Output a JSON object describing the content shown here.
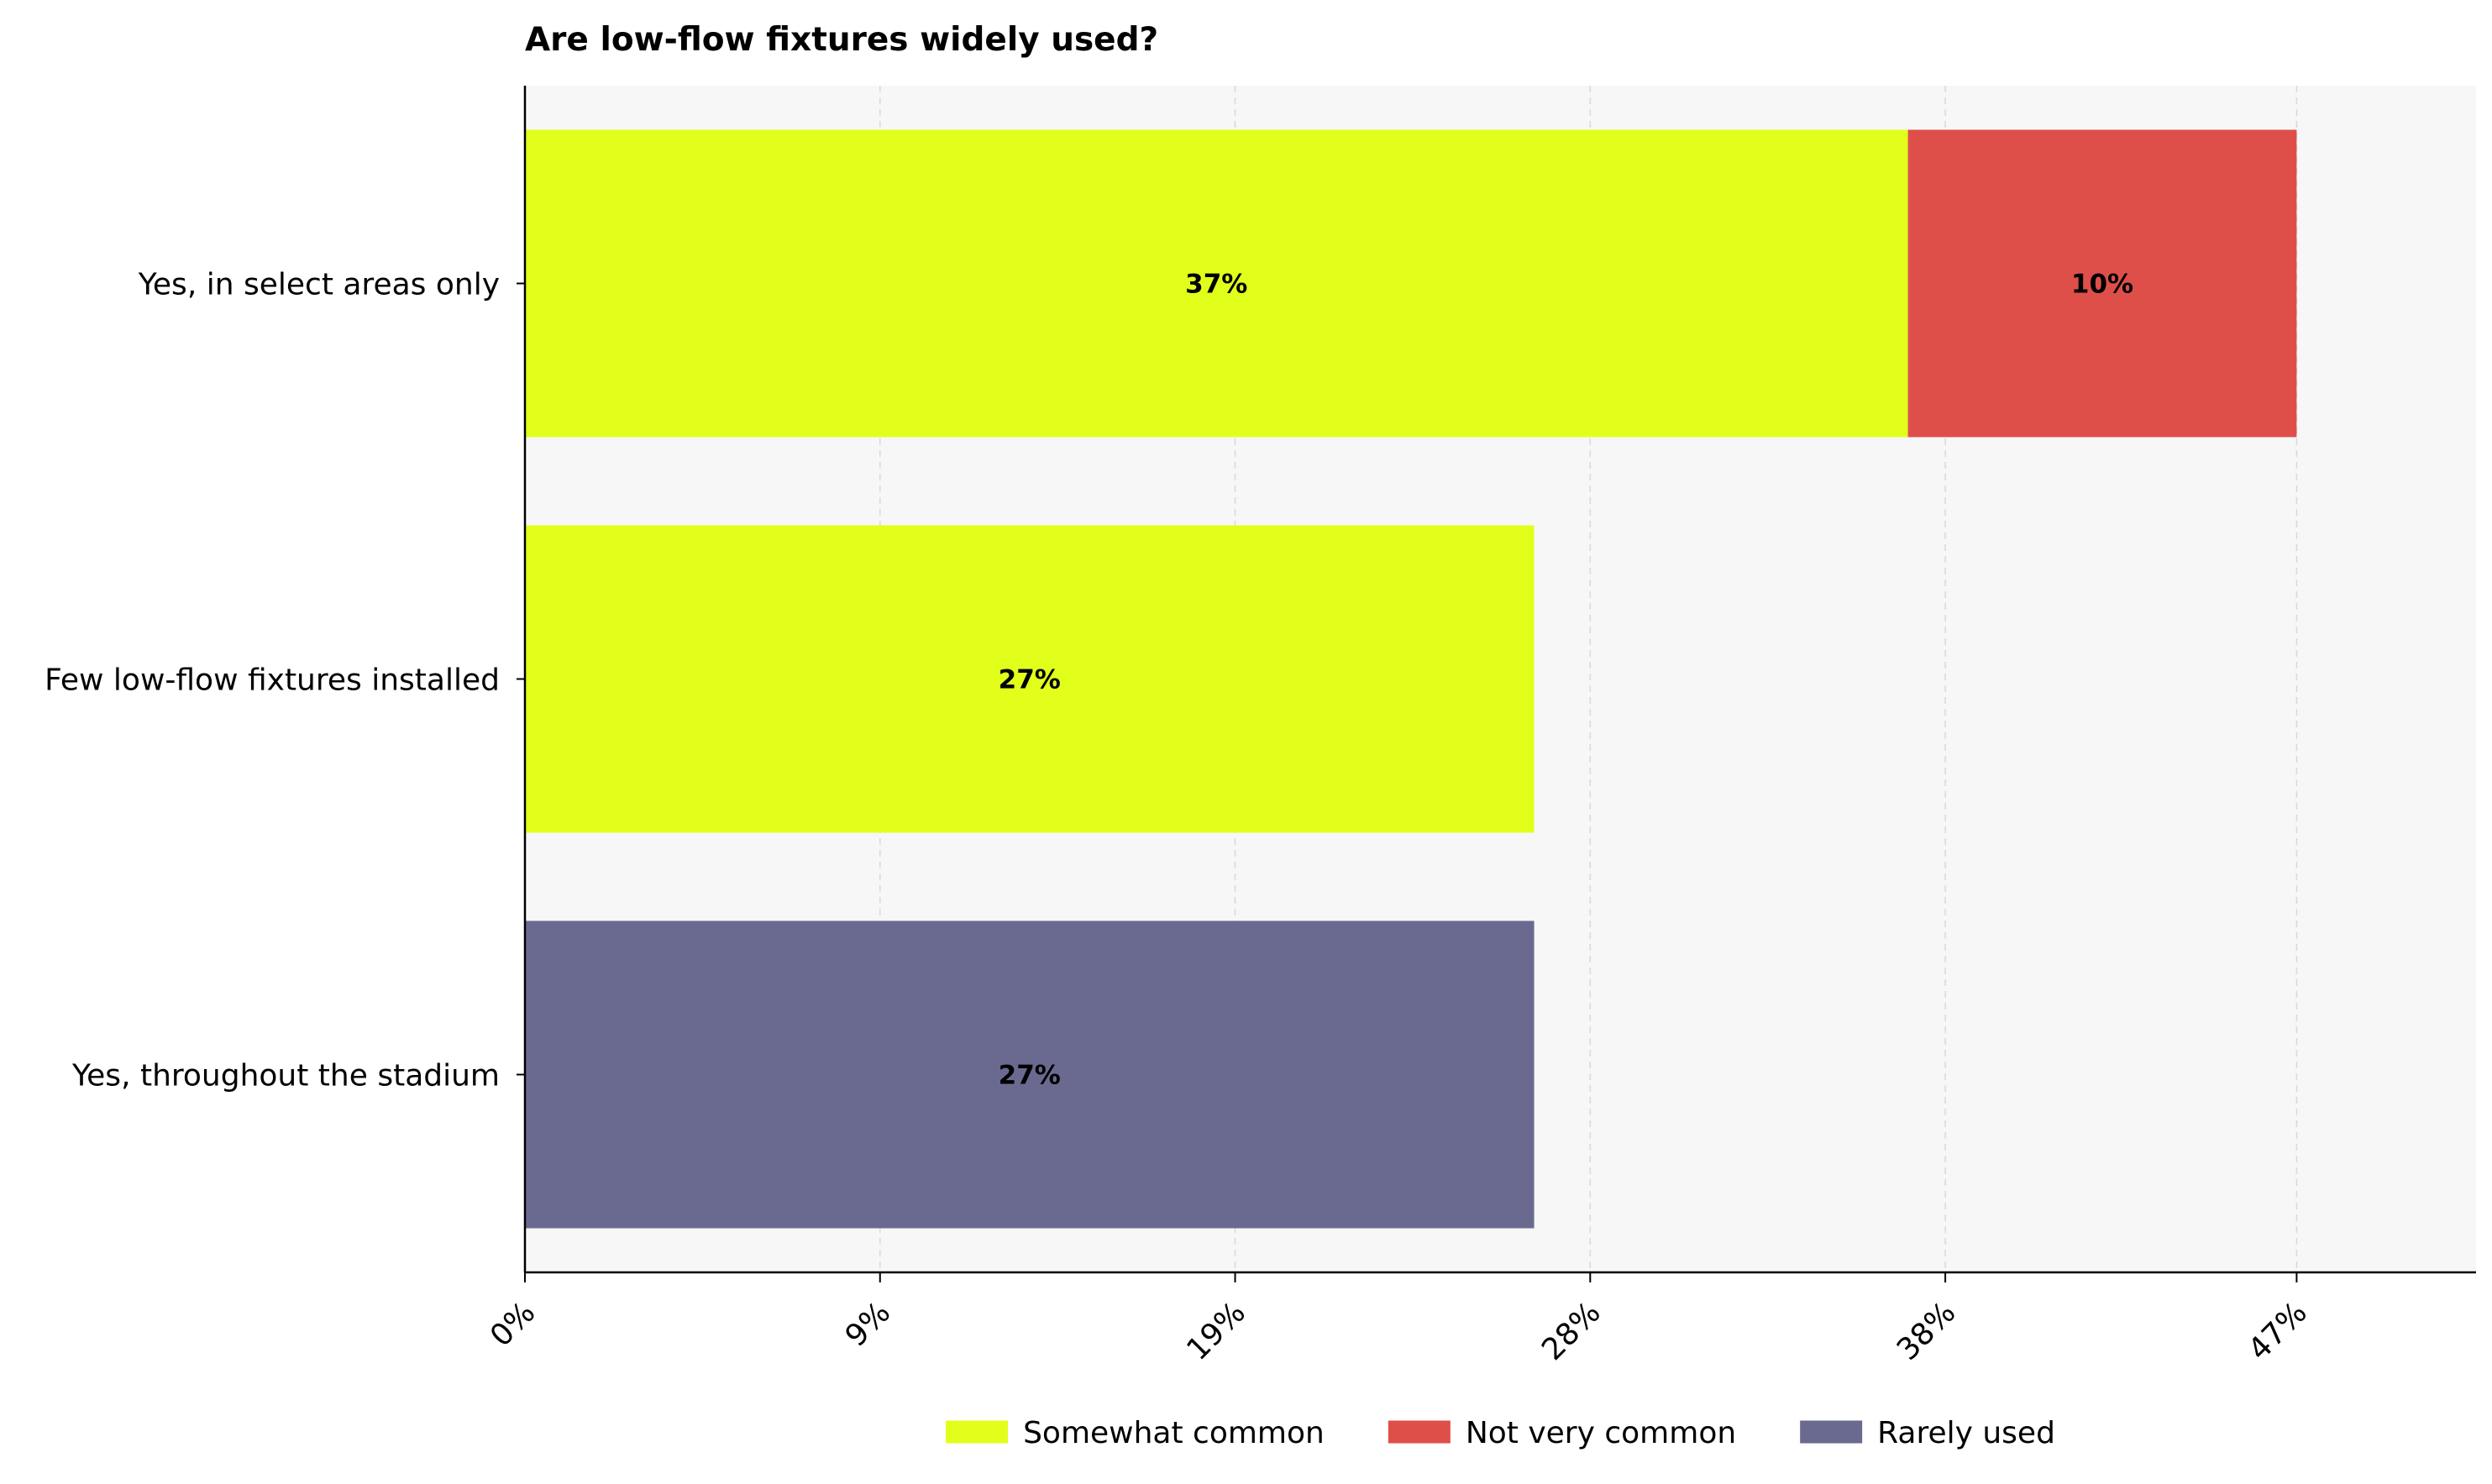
{
  "chart_data": {
    "type": "bar",
    "orientation": "horizontal",
    "stacked": true,
    "title": "Are low-flow fixtures widely used?",
    "xlabel": "",
    "ylabel": "",
    "categories": [
      "Yes, in select areas only",
      "Few low-flow fixtures installed",
      "Yes, throughout the stadium"
    ],
    "series": [
      {
        "name": "Somewhat common",
        "color": "#e1ff1b",
        "values": [
          37,
          27,
          0
        ]
      },
      {
        "name": "Not very common",
        "color": "#df4f4a",
        "values": [
          10.4,
          0,
          0
        ]
      },
      {
        "name": "Rarely used",
        "color": "#6a6a91",
        "values": [
          0,
          0,
          27
        ]
      }
    ],
    "data_labels": [
      [
        "37%",
        "27%",
        ""
      ],
      [
        "10%",
        "",
        ""
      ],
      [
        "",
        "",
        "27%"
      ]
    ],
    "xlim": [
      0,
      52.2
    ],
    "xticks": [
      0,
      9.5,
      19,
      28.5,
      38,
      47.4
    ],
    "xtick_labels": [
      "0%",
      "9%",
      "19%",
      "28%",
      "38%",
      "47%"
    ],
    "grid": "vertical-dashed",
    "legend_position": "bottom-center",
    "plot_background": "#f7f7f7"
  }
}
